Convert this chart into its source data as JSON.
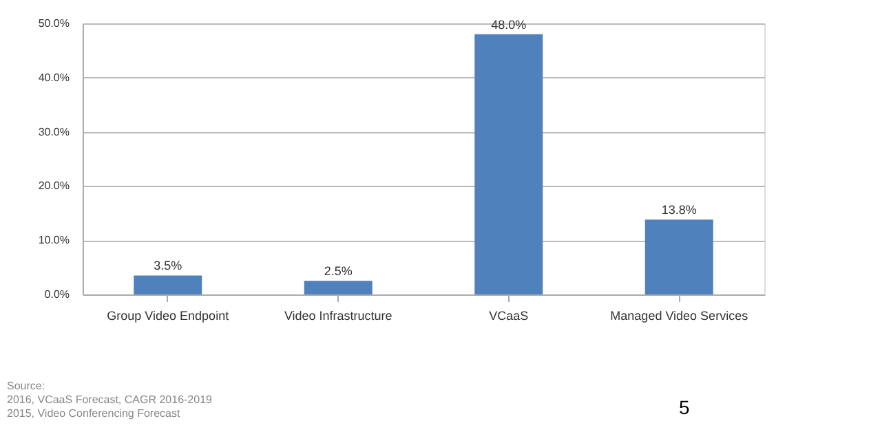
{
  "chart_data": {
    "type": "bar",
    "categories": [
      "Group Video Endpoint",
      "Video Infrastructure",
      "VCaaS",
      "Managed Video Services"
    ],
    "values": [
      3.5,
      2.5,
      48.0,
      13.8
    ],
    "value_labels": [
      "3.5%",
      "2.5%",
      "48.0%",
      "13.8%"
    ],
    "color": "#4f81bd",
    "ylim": [
      0,
      50
    ],
    "yticks": [
      {
        "value": 0,
        "label": "0.0%"
      },
      {
        "value": 10,
        "label": "10.0%"
      },
      {
        "value": 20,
        "label": "20.0%"
      },
      {
        "value": 30,
        "label": "30.0%"
      },
      {
        "value": 40,
        "label": "40.0%"
      },
      {
        "value": 50,
        "label": "50.0%"
      }
    ],
    "grid": "y",
    "annotations": [
      "Source:",
      "2016, VCaaS Forecast, CAGR 2016-2019",
      "2015, Video Conferencing Forecast",
      "5"
    ]
  }
}
